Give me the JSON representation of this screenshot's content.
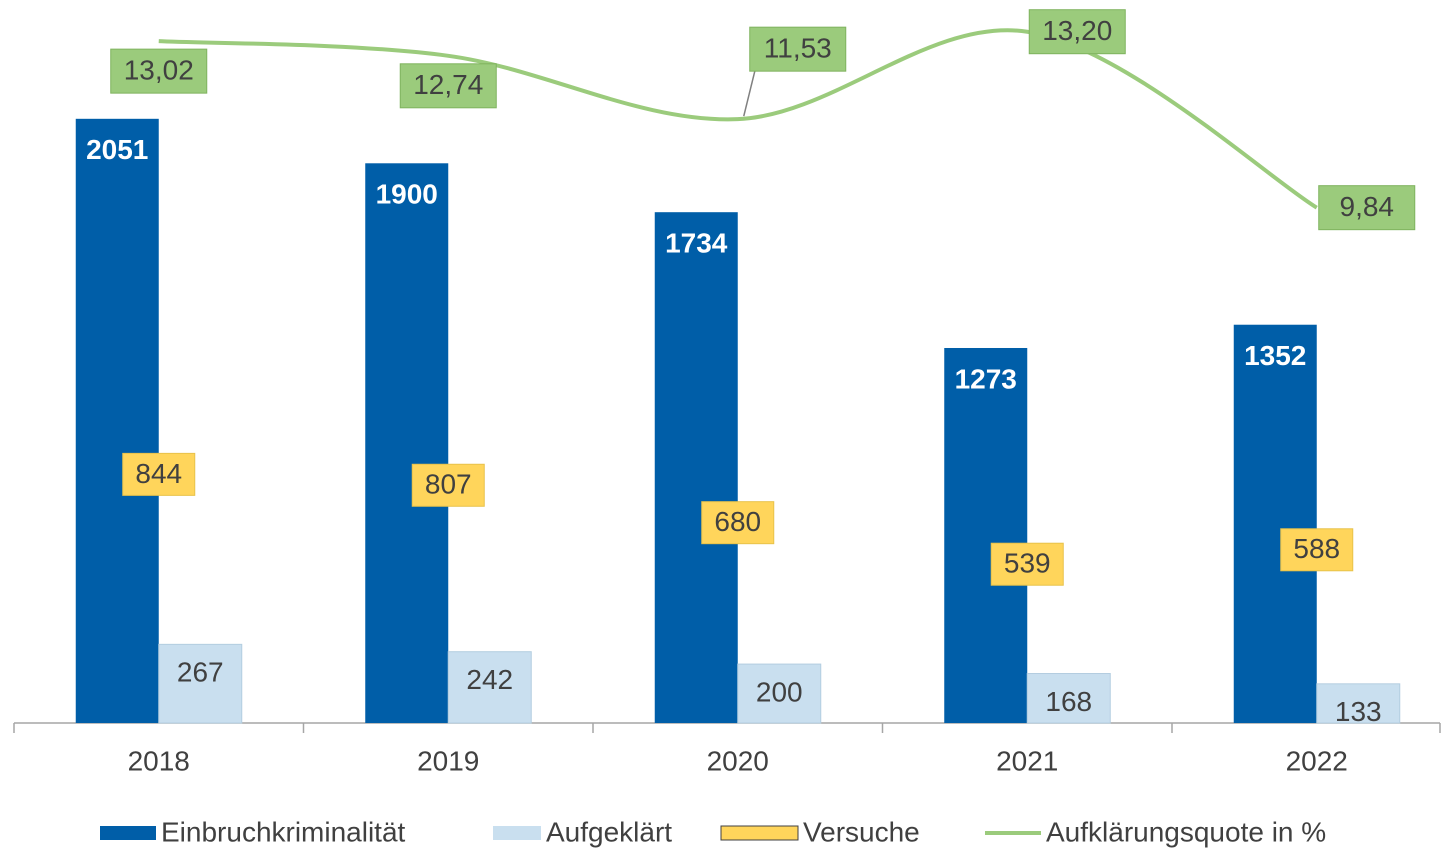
{
  "chart_data": {
    "type": "bar",
    "categories": [
      "2018",
      "2019",
      "2020",
      "2021",
      "2022"
    ],
    "ylim": [
      0,
      2400
    ],
    "y2lim": [
      0,
      13.5
    ],
    "series": [
      {
        "name": "Einbruchkriminalität",
        "color": "#005ea8",
        "values": [
          2051,
          1900,
          1734,
          1273,
          1352
        ]
      },
      {
        "name": "Aufgeklärt",
        "color": "#c9dfef",
        "values": [
          267,
          242,
          200,
          168,
          133
        ]
      },
      {
        "name": "Versuche",
        "color": "#ffd55b",
        "values": [
          844,
          807,
          680,
          539,
          588
        ]
      },
      {
        "name": "Aufklärungsquote in %",
        "color": "#9bcb7c",
        "axis": "y2",
        "type": "line",
        "values": [
          13.02,
          12.74,
          11.53,
          13.2,
          9.84
        ],
        "value_labels": [
          "13,02",
          "12,74",
          "11,53",
          "13,20",
          "9,84"
        ]
      }
    ]
  }
}
